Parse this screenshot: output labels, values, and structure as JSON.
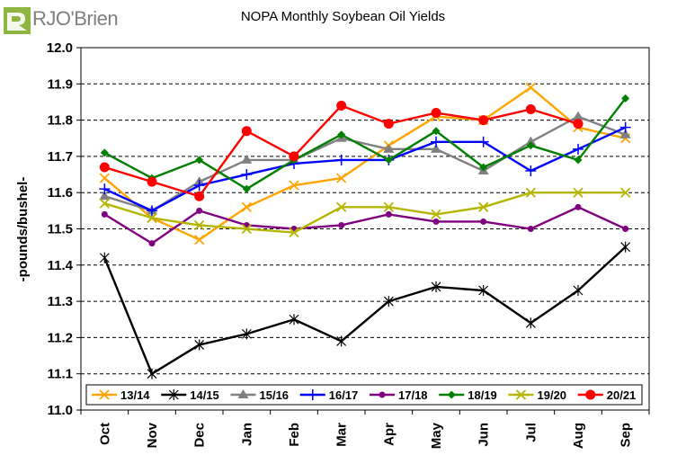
{
  "brand": {
    "name": "RJO'Brien",
    "color": "#7f7f7f",
    "accent": "#8db53f"
  },
  "chart_data": {
    "type": "line",
    "title": "NOPA Monthly Soybean Oil Yields",
    "xlabel": "",
    "ylabel": "-pounds/bushel-",
    "categories": [
      "Oct",
      "Nov",
      "Dec",
      "Jan",
      "Feb",
      "Mar",
      "Apr",
      "May",
      "Jun",
      "Jul",
      "Aug",
      "Sep"
    ],
    "ylim": [
      11.0,
      12.0
    ],
    "yticks": [
      "11.0",
      "11.1",
      "11.2",
      "11.3",
      "11.4",
      "11.5",
      "11.6",
      "11.7",
      "11.8",
      "11.9",
      "12.0"
    ],
    "grid": "horizontal dashed",
    "legend_position": "bottom",
    "series": [
      {
        "name": "13/14",
        "color": "#ffa500",
        "marker": "x",
        "values": [
          11.64,
          11.53,
          11.47,
          11.56,
          11.62,
          11.64,
          11.73,
          11.81,
          11.8,
          11.89,
          11.78,
          11.75
        ]
      },
      {
        "name": "14/15",
        "color": "#000000",
        "marker": "star",
        "values": [
          11.42,
          11.1,
          11.18,
          11.21,
          11.25,
          11.19,
          11.3,
          11.34,
          11.33,
          11.24,
          11.33,
          11.45
        ]
      },
      {
        "name": "15/16",
        "color": "#808080",
        "marker": "triangle",
        "values": [
          11.59,
          11.55,
          11.63,
          11.69,
          11.69,
          11.75,
          11.72,
          11.72,
          11.66,
          11.74,
          11.81,
          11.76
        ]
      },
      {
        "name": "16/17",
        "color": "#0000ff",
        "marker": "plus",
        "values": [
          11.61,
          11.55,
          11.62,
          11.65,
          11.68,
          11.69,
          11.69,
          11.74,
          11.74,
          11.66,
          11.72,
          11.78
        ]
      },
      {
        "name": "17/18",
        "color": "#800080",
        "marker": "circle",
        "values": [
          11.54,
          11.46,
          11.55,
          11.51,
          11.5,
          11.51,
          11.54,
          11.52,
          11.52,
          11.5,
          11.56,
          11.5
        ]
      },
      {
        "name": "18/19",
        "color": "#008000",
        "marker": "diamond",
        "values": [
          11.71,
          11.64,
          11.69,
          11.61,
          11.69,
          11.76,
          11.69,
          11.77,
          11.67,
          11.73,
          11.69,
          11.86
        ]
      },
      {
        "name": "19/20",
        "color": "#b5b500",
        "marker": "x",
        "values": [
          11.57,
          11.53,
          11.51,
          11.5,
          11.49,
          11.56,
          11.56,
          11.54,
          11.56,
          11.6,
          11.6,
          11.6
        ]
      },
      {
        "name": "20/21",
        "color": "#ff0000",
        "marker": "bigcircle",
        "values": [
          11.67,
          11.63,
          11.59,
          11.77,
          11.7,
          11.84,
          11.79,
          11.82,
          11.8,
          11.83,
          11.79,
          null
        ]
      }
    ]
  }
}
